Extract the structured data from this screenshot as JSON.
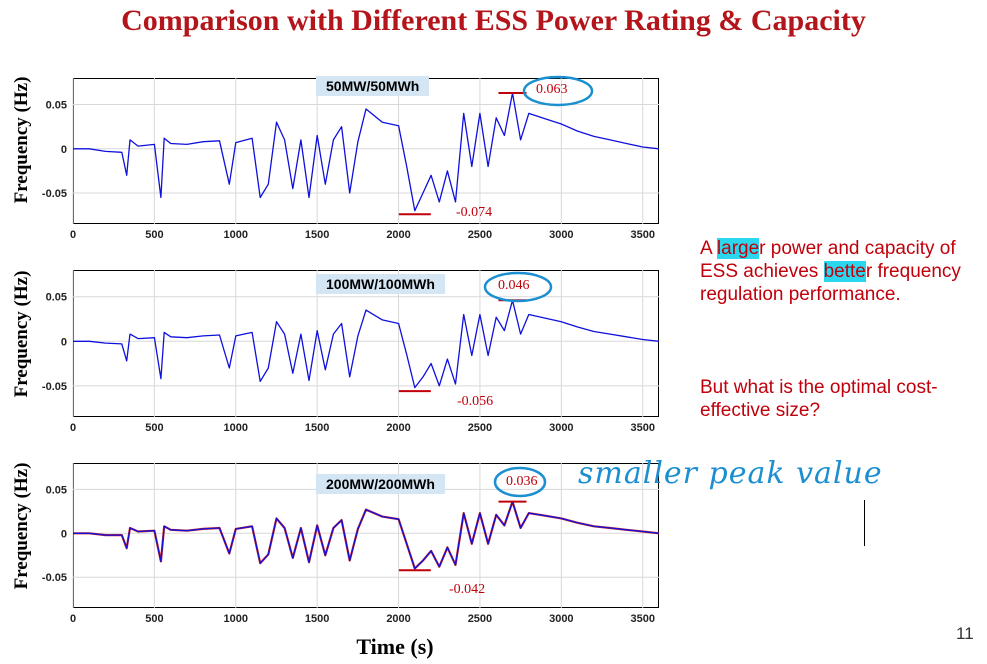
{
  "slide": {
    "title": "Comparison with Different ESS Power Rating & Capacity",
    "page_number": "11",
    "xlabel": "Time (s)",
    "ylabel": "Frequency (Hz)",
    "note_line1_pre": "A ",
    "note_line1_hl1": "large",
    "note_line1_mid": "r power and capacity of ESS achieves ",
    "note_line1_hl2": "bette",
    "note_line1_post": "r frequency regulation performance.",
    "note_question": "But what is the optimal cost-effective size?",
    "handwritten_note": "smaller peak value"
  },
  "colors": {
    "title": "#b3151b",
    "annotation_red": "#c0000b",
    "series_blue": "#1010dd",
    "series_red": "#cc2222",
    "handwriting_blue": "#1b8fd0",
    "label_box": "#d4e6f3",
    "highlight": "#2bd7ee"
  },
  "chart_data": [
    {
      "type": "line",
      "label": "50MW/50MWh",
      "ylabel": "Frequency (Hz)",
      "xlim": [
        0,
        3600
      ],
      "ylim": [
        -0.085,
        0.08
      ],
      "xticks": [
        "0",
        "500",
        "1000",
        "1500",
        "2000",
        "2500",
        "3000",
        "3500"
      ],
      "yticks": [
        "0.05",
        "0",
        "-0.05"
      ],
      "max_label": "0.063",
      "min_label": "-0.074",
      "peak_max": 0.063,
      "peak_min": -0.074,
      "series": [
        {
          "x": [
            0,
            100,
            200,
            300,
            330,
            350,
            400,
            500,
            540,
            560,
            600,
            700,
            800,
            900,
            960,
            1000,
            1100,
            1150,
            1200,
            1250,
            1300,
            1350,
            1400,
            1450,
            1500,
            1550,
            1600,
            1650,
            1700,
            1750,
            1800,
            1900,
            2000,
            2050,
            2100,
            2150,
            2200,
            2250,
            2300,
            2350,
            2400,
            2450,
            2500,
            2550,
            2600,
            2650,
            2700,
            2750,
            2800,
            2900,
            3000,
            3100,
            3200,
            3300,
            3400,
            3500,
            3600
          ],
          "y": [
            0,
            0,
            -0.003,
            -0.004,
            -0.03,
            0.01,
            0.003,
            0.005,
            -0.055,
            0.012,
            0.006,
            0.005,
            0.008,
            0.009,
            -0.04,
            0.007,
            0.012,
            -0.055,
            -0.04,
            0.03,
            0.01,
            -0.045,
            0.01,
            -0.055,
            0.015,
            -0.04,
            0.01,
            0.025,
            -0.05,
            0.008,
            0.045,
            0.03,
            0.026,
            -0.02,
            -0.07,
            -0.05,
            -0.03,
            -0.06,
            -0.025,
            -0.06,
            0.04,
            -0.02,
            0.04,
            -0.02,
            0.035,
            0.015,
            0.063,
            0.01,
            0.04,
            0.034,
            0.028,
            0.02,
            0.014,
            0.01,
            0.006,
            0.002,
            0
          ]
        }
      ]
    },
    {
      "type": "line",
      "label": "100MW/100MWh",
      "ylabel": "Frequency (Hz)",
      "xlim": [
        0,
        3600
      ],
      "ylim": [
        -0.085,
        0.08
      ],
      "xticks": [
        "0",
        "500",
        "1000",
        "1500",
        "2000",
        "2500",
        "3000",
        "3500"
      ],
      "yticks": [
        "0.05",
        "0",
        "-0.05"
      ],
      "max_label": "0.046",
      "min_label": "-0.056",
      "peak_max": 0.046,
      "peak_min": -0.056,
      "series": [
        {
          "x": [
            0,
            100,
            200,
            300,
            330,
            350,
            400,
            500,
            540,
            560,
            600,
            700,
            800,
            900,
            960,
            1000,
            1100,
            1150,
            1200,
            1250,
            1300,
            1350,
            1400,
            1450,
            1500,
            1550,
            1600,
            1650,
            1700,
            1750,
            1800,
            1900,
            2000,
            2050,
            2100,
            2150,
            2200,
            2250,
            2300,
            2350,
            2400,
            2450,
            2500,
            2550,
            2600,
            2650,
            2700,
            2750,
            2800,
            2900,
            3000,
            3100,
            3200,
            3300,
            3400,
            3500,
            3600
          ],
          "y": [
            0,
            0,
            -0.002,
            -0.003,
            -0.022,
            0.008,
            0.003,
            0.004,
            -0.042,
            0.01,
            0.005,
            0.004,
            0.006,
            0.007,
            -0.03,
            0.006,
            0.01,
            -0.045,
            -0.03,
            0.022,
            0.008,
            -0.036,
            0.008,
            -0.044,
            0.012,
            -0.032,
            0.008,
            0.02,
            -0.04,
            0.006,
            0.035,
            0.024,
            0.02,
            -0.015,
            -0.052,
            -0.04,
            -0.025,
            -0.05,
            -0.02,
            -0.048,
            0.03,
            -0.016,
            0.03,
            -0.016,
            0.027,
            0.012,
            0.046,
            0.008,
            0.03,
            0.026,
            0.022,
            0.016,
            0.011,
            0.008,
            0.005,
            0.002,
            0
          ]
        }
      ]
    },
    {
      "type": "line",
      "label": "200MW/200MWh",
      "ylabel": "Frequency (Hz)",
      "xlim": [
        0,
        3600
      ],
      "ylim": [
        -0.085,
        0.08
      ],
      "xticks": [
        "0",
        "500",
        "1000",
        "1500",
        "2000",
        "2500",
        "3000",
        "3500"
      ],
      "yticks": [
        "0.05",
        "0",
        "-0.05"
      ],
      "max_label": "0.036",
      "min_label": "-0.042",
      "peak_max": 0.036,
      "peak_min": -0.042,
      "series": [
        {
          "x": [
            0,
            100,
            200,
            300,
            330,
            350,
            400,
            500,
            540,
            560,
            600,
            700,
            800,
            900,
            960,
            1000,
            1100,
            1150,
            1200,
            1250,
            1300,
            1350,
            1400,
            1450,
            1500,
            1550,
            1600,
            1650,
            1700,
            1750,
            1800,
            1900,
            2000,
            2050,
            2100,
            2150,
            2200,
            2250,
            2300,
            2350,
            2400,
            2450,
            2500,
            2550,
            2600,
            2650,
            2700,
            2750,
            2800,
            2900,
            3000,
            3100,
            3200,
            3300,
            3400,
            3500,
            3600
          ],
          "y": [
            0,
            0,
            -0.002,
            -0.002,
            -0.017,
            0.006,
            0.002,
            0.003,
            -0.032,
            0.008,
            0.004,
            0.003,
            0.005,
            0.006,
            -0.023,
            0.005,
            0.008,
            -0.034,
            -0.024,
            0.017,
            0.006,
            -0.028,
            0.006,
            -0.033,
            0.009,
            -0.025,
            0.006,
            0.015,
            -0.031,
            0.005,
            0.027,
            0.019,
            0.016,
            -0.012,
            -0.04,
            -0.031,
            -0.02,
            -0.038,
            -0.016,
            -0.036,
            0.023,
            -0.012,
            0.023,
            -0.012,
            0.021,
            0.009,
            0.036,
            0.006,
            0.023,
            0.02,
            0.017,
            0.012,
            0.008,
            0.006,
            0.004,
            0.002,
            0
          ]
        }
      ]
    }
  ]
}
